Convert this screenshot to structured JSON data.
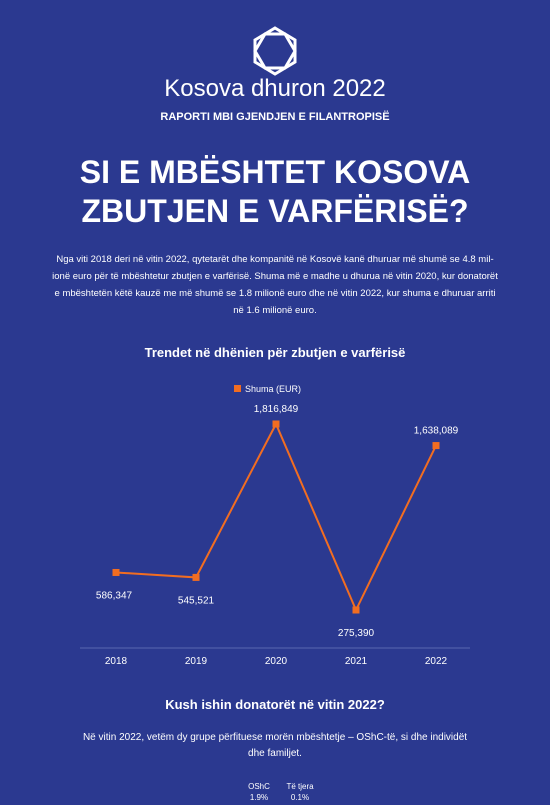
{
  "header": {
    "brand": "Kosova dhuron 2022",
    "subtitle": "RAPORTI MBI GJENDJEN E FILANTROPISË",
    "headline": [
      "SI E MBËSHTET KOSOVA",
      "ZBUTJEN E VARFËRISË?"
    ]
  },
  "intro": [
    "Nga viti 2018 deri në vitin 2022, qytetarët dhe kompanitë në Kosovë kanë dhuruar më shumë se 4.8 mil-",
    "ionë euro për të mbështetur zbutjen e varfërisë. Shuma më e madhe u dhurua në vitin 2020, kur donatorët",
    "e mbështetën këtë kauzë me më shumë se 1.8 milionë euro dhe në vitin 2022, kur shuma e dhuruar arriti",
    "në 1.6 milionë euro."
  ],
  "chart_data": {
    "type": "line",
    "title": "Trendet në dhënien për zbutjen e varfërisë",
    "categories": [
      "2018",
      "2019",
      "2020",
      "2021",
      "2022"
    ],
    "series": [
      {
        "name": "Shuma (EUR)",
        "color": "#f26d21",
        "values": [
          586347,
          545521,
          1816849,
          275390,
          1638089
        ],
        "value_labels": [
          "586,347",
          "545,521",
          "1,816,849",
          "275,390",
          "1,638,089"
        ]
      }
    ]
  },
  "donors": {
    "title": "Kush ishin donatorët në vitin 2022?",
    "text": [
      "Në vitin 2022, vetëm dy grupe përfituese morën mbështetje – OShC-të, si dhe individët",
      "dhe familjet."
    ],
    "labels": [
      {
        "name": "OShC",
        "share": "1.9%"
      },
      {
        "name": "Të tjera",
        "share": "0.1%"
      }
    ]
  }
}
